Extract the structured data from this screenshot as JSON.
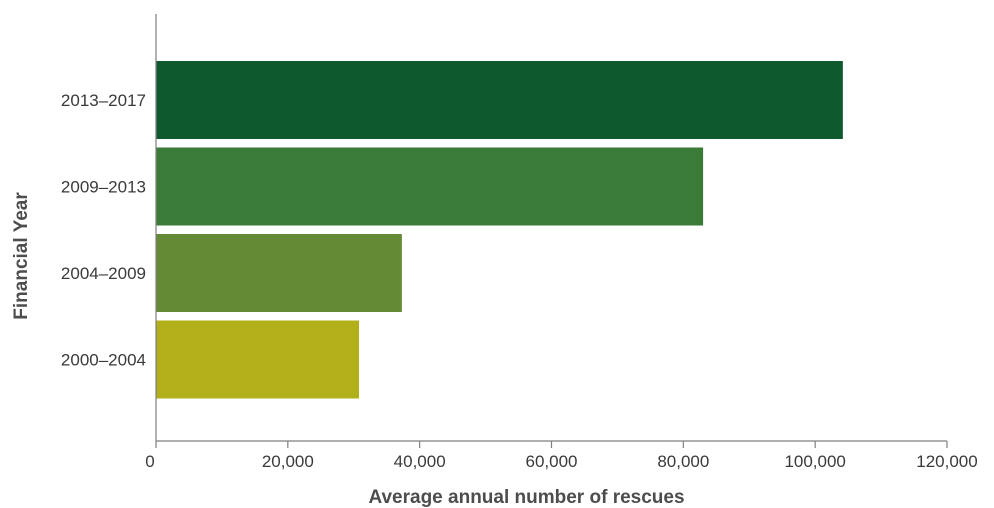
{
  "chart_data": {
    "type": "bar",
    "orientation": "horizontal",
    "categories": [
      "2013–2017",
      "2009–2013",
      "2004–2009",
      "2000–2004"
    ],
    "values": [
      104200,
      83000,
      37300,
      30800
    ],
    "colors": [
      "#0e5a2e",
      "#3a7b38",
      "#648a35",
      "#b2b01a"
    ],
    "xlabel": "Average annual number of rescues",
    "ylabel": "Financial Year",
    "xlim": [
      0,
      120000
    ],
    "x_ticks": [
      0,
      20000,
      40000,
      60000,
      80000,
      100000,
      120000
    ],
    "x_tick_labels": [
      "0",
      "20,000",
      "40,000",
      "60,000",
      "80,000",
      "100,000",
      "120,000"
    ],
    "grid": false,
    "legend": "none"
  }
}
